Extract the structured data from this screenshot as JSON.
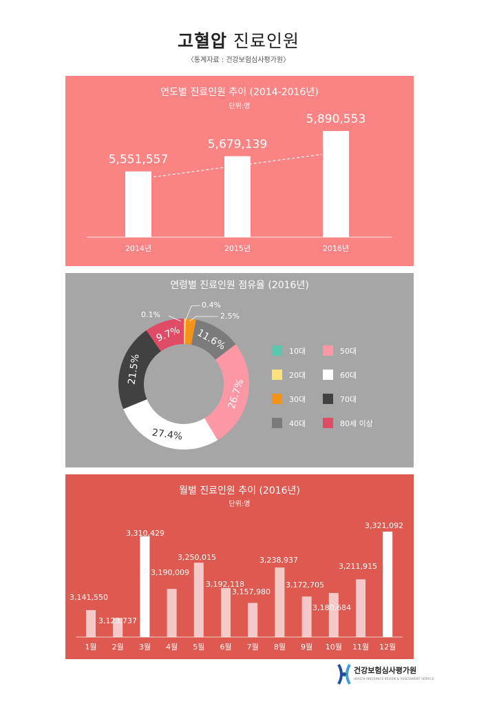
{
  "page": {
    "title_bold": "고혈압",
    "title_rest": "진료인원",
    "source": "〈통계자료 : 건강보험심사평가원〉"
  },
  "colors": {
    "panel1": "#fa8484",
    "panel2": "#a6a6a6",
    "panel3": "#de5a50",
    "age_10": "#5bc8ae",
    "age_20": "#fce27a",
    "age_30": "#f59218",
    "age_40": "#7b7b7b",
    "age_50": "#fc97a6",
    "age_60": "#ffffff",
    "age_70": "#414141",
    "age_80": "#e04b65"
  },
  "chart_data": [
    {
      "type": "bar",
      "title": "연도별 진료인원 추이 (2014-2016년)",
      "unit": "단위:명",
      "categories": [
        "2014년",
        "2015년",
        "2016년"
      ],
      "values": [
        5551557,
        5679139,
        5890553
      ],
      "value_labels": [
        "5,551,557",
        "5,679,139",
        "5,890,553"
      ],
      "trend_line": "dashed"
    },
    {
      "type": "pie",
      "title": "연령별 진료인원 점유율 (2016년)",
      "legend_placement": "right",
      "slices": [
        {
          "label": "10대",
          "value": 0.1,
          "value_label": "0.1%",
          "color": "#5bc8ae"
        },
        {
          "label": "20대",
          "value": 0.4,
          "value_label": "0.4%",
          "color": "#fce27a"
        },
        {
          "label": "30대",
          "value": 2.5,
          "value_label": "2.5%",
          "color": "#f59218"
        },
        {
          "label": "40대",
          "value": 11.6,
          "value_label": "11.6%",
          "color": "#7b7b7b"
        },
        {
          "label": "50대",
          "value": 26.7,
          "value_label": "26.7%",
          "color": "#fc97a6"
        },
        {
          "label": "60대",
          "value": 27.4,
          "value_label": "27.4%",
          "color": "#ffffff"
        },
        {
          "label": "70대",
          "value": 21.5,
          "value_label": "21.5%",
          "color": "#414141"
        },
        {
          "label": "80세 이상",
          "value": 9.7,
          "value_label": "9.7%",
          "color": "#e04b65"
        }
      ],
      "legend": [
        "10대",
        "50대",
        "20대",
        "60대",
        "30대",
        "70대",
        "40대",
        "80세 이상"
      ]
    },
    {
      "type": "bar",
      "title": "월별 진료인원 추이 (2016년)",
      "unit": "단위:명",
      "categories": [
        "1월",
        "2월",
        "3월",
        "4월",
        "5월",
        "6월",
        "7월",
        "8월",
        "9월",
        "10월",
        "11월",
        "12월"
      ],
      "values": [
        3141550,
        3123737,
        3310429,
        3190009,
        3250015,
        3192118,
        3157980,
        3238937,
        3172705,
        3180684,
        3211915,
        3321092
      ],
      "value_labels": [
        "3,141,550",
        "3,123,737",
        "3,310,429",
        "3,190,009",
        "3,250,015",
        "3,192,118",
        "3,157,980",
        "3,238,937",
        "3,172,705",
        "3,180,684",
        "3,211,915",
        "3,321,092"
      ],
      "highlight": [
        "3월",
        "12월"
      ]
    }
  ],
  "footer": {
    "org_name": "건강보험심사평가원",
    "org_sub": "HEALTH INSURANCE REVIEW & ASSESSMENT SERVICE"
  }
}
